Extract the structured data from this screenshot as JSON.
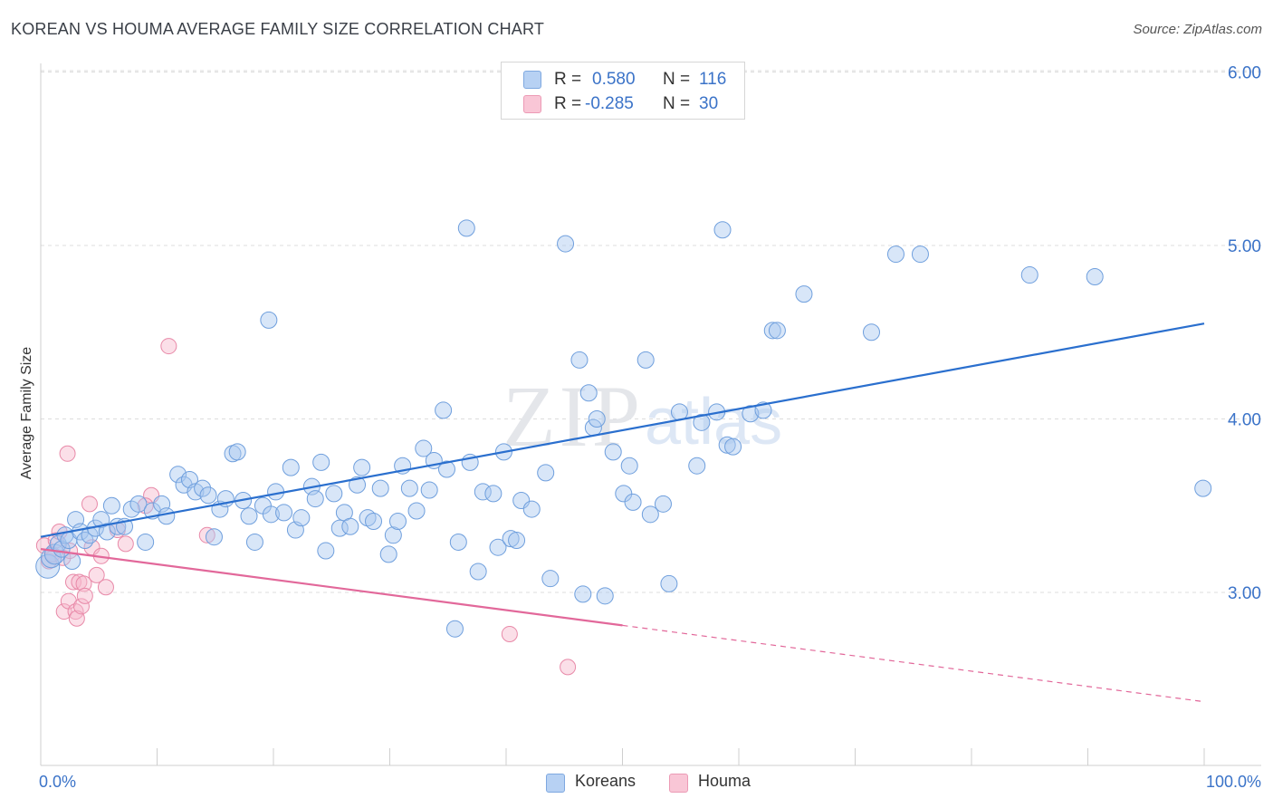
{
  "header": {
    "title": "KOREAN VS HOUMA AVERAGE FAMILY SIZE CORRELATION CHART",
    "source": "Source: ZipAtlas.com"
  },
  "watermark": {
    "zip": "ZIP",
    "atlas": "atlas"
  },
  "legend_top": {
    "korean": {
      "r_label": "R =",
      "r_value": "0.580",
      "n_label": "N =",
      "n_value": "116"
    },
    "houma": {
      "r_label": "R =",
      "r_value": "-0.285",
      "n_label": "N =",
      "n_value": "30"
    }
  },
  "colors": {
    "korean_fill": "#a9c8f0",
    "korean_stroke": "#6f9fdd",
    "korean_line": "#2a6fce",
    "houma_fill": "#f7b8cb",
    "houma_stroke": "#e889a8",
    "houma_line": "#e2689a",
    "axis_label": "#3b73c8",
    "grid": "#dcdcdc"
  },
  "chart_data": {
    "type": "scatter",
    "title": "KOREAN VS HOUMA AVERAGE FAMILY SIZE CORRELATION CHART",
    "xlabel": "",
    "ylabel": "Average Family Size",
    "xlim": [
      0,
      100
    ],
    "ylim": [
      2.0,
      6.1
    ],
    "x_tick_labels": [
      "0.0%",
      "100.0%"
    ],
    "y_ticks": [
      3.0,
      4.0,
      5.0,
      6.0
    ],
    "y_tick_labels": [
      "3.00",
      "4.00",
      "5.00",
      "6.00"
    ],
    "grid": true,
    "legend_position": "bottom",
    "series": [
      {
        "name": "Koreans",
        "r": 0.58,
        "n": 116,
        "trend": {
          "x": [
            0,
            100
          ],
          "y": [
            3.32,
            4.55
          ],
          "dashed_from": null
        },
        "points": [
          [
            0.6,
            3.15
          ],
          [
            0.9,
            3.2
          ],
          [
            1.2,
            3.22
          ],
          [
            1.5,
            3.28
          ],
          [
            1.8,
            3.25
          ],
          [
            2.1,
            3.33
          ],
          [
            2.4,
            3.3
          ],
          [
            2.7,
            3.18
          ],
          [
            3.0,
            3.42
          ],
          [
            3.4,
            3.35
          ],
          [
            3.8,
            3.3
          ],
          [
            4.2,
            3.33
          ],
          [
            4.7,
            3.37
          ],
          [
            5.2,
            3.42
          ],
          [
            5.7,
            3.35
          ],
          [
            6.1,
            3.5
          ],
          [
            6.6,
            3.38
          ],
          [
            7.2,
            3.38
          ],
          [
            7.8,
            3.48
          ],
          [
            8.4,
            3.51
          ],
          [
            9.0,
            3.29
          ],
          [
            9.6,
            3.47
          ],
          [
            10.4,
            3.51
          ],
          [
            10.8,
            3.44
          ],
          [
            11.8,
            3.68
          ],
          [
            12.3,
            3.62
          ],
          [
            12.8,
            3.65
          ],
          [
            13.3,
            3.58
          ],
          [
            13.9,
            3.6
          ],
          [
            14.4,
            3.56
          ],
          [
            14.9,
            3.32
          ],
          [
            15.4,
            3.48
          ],
          [
            15.9,
            3.54
          ],
          [
            16.5,
            3.8
          ],
          [
            16.9,
            3.81
          ],
          [
            17.4,
            3.53
          ],
          [
            17.9,
            3.44
          ],
          [
            18.4,
            3.29
          ],
          [
            19.1,
            3.5
          ],
          [
            19.6,
            4.57
          ],
          [
            19.8,
            3.45
          ],
          [
            20.2,
            3.58
          ],
          [
            20.9,
            3.46
          ],
          [
            21.5,
            3.72
          ],
          [
            21.9,
            3.36
          ],
          [
            22.4,
            3.43
          ],
          [
            23.3,
            3.61
          ],
          [
            23.6,
            3.54
          ],
          [
            24.1,
            3.75
          ],
          [
            24.5,
            3.24
          ],
          [
            25.2,
            3.57
          ],
          [
            25.7,
            3.37
          ],
          [
            26.1,
            3.46
          ],
          [
            26.6,
            3.38
          ],
          [
            27.2,
            3.62
          ],
          [
            27.6,
            3.72
          ],
          [
            28.1,
            3.43
          ],
          [
            28.6,
            3.41
          ],
          [
            29.2,
            3.6
          ],
          [
            29.9,
            3.22
          ],
          [
            30.3,
            3.33
          ],
          [
            30.7,
            3.41
          ],
          [
            31.1,
            3.73
          ],
          [
            31.7,
            3.6
          ],
          [
            32.3,
            3.47
          ],
          [
            32.9,
            3.83
          ],
          [
            33.4,
            3.59
          ],
          [
            33.8,
            3.76
          ],
          [
            34.6,
            4.05
          ],
          [
            34.9,
            3.71
          ],
          [
            35.6,
            2.79
          ],
          [
            35.9,
            3.29
          ],
          [
            36.6,
            5.1
          ],
          [
            36.9,
            3.75
          ],
          [
            37.6,
            3.12
          ],
          [
            38.0,
            3.58
          ],
          [
            38.9,
            3.57
          ],
          [
            39.3,
            3.26
          ],
          [
            39.8,
            3.81
          ],
          [
            40.4,
            3.31
          ],
          [
            40.9,
            3.3
          ],
          [
            41.3,
            3.53
          ],
          [
            42.2,
            3.48
          ],
          [
            43.4,
            3.69
          ],
          [
            43.8,
            3.08
          ],
          [
            45.1,
            5.01
          ],
          [
            46.3,
            4.34
          ],
          [
            46.6,
            2.99
          ],
          [
            47.1,
            4.15
          ],
          [
            47.5,
            3.95
          ],
          [
            47.8,
            4.0
          ],
          [
            48.5,
            2.98
          ],
          [
            49.2,
            3.81
          ],
          [
            50.1,
            3.57
          ],
          [
            50.6,
            3.73
          ],
          [
            50.9,
            3.52
          ],
          [
            52.0,
            4.34
          ],
          [
            52.4,
            3.45
          ],
          [
            53.5,
            3.51
          ],
          [
            54.0,
            3.05
          ],
          [
            54.9,
            4.04
          ],
          [
            56.4,
            3.73
          ],
          [
            56.8,
            3.98
          ],
          [
            58.1,
            4.04
          ],
          [
            58.6,
            5.09
          ],
          [
            59.0,
            3.85
          ],
          [
            59.5,
            3.84
          ],
          [
            61.0,
            4.03
          ],
          [
            62.1,
            4.05
          ],
          [
            62.9,
            4.51
          ],
          [
            63.3,
            4.51
          ],
          [
            65.6,
            4.72
          ],
          [
            71.4,
            4.5
          ],
          [
            73.5,
            4.95
          ],
          [
            75.6,
            4.95
          ],
          [
            85.0,
            4.83
          ],
          [
            90.6,
            4.82
          ],
          [
            99.9,
            3.6
          ]
        ]
      },
      {
        "name": "Houma",
        "r": -0.285,
        "n": 30,
        "trend": {
          "x": [
            0,
            100
          ],
          "y": [
            3.25,
            2.37
          ],
          "dashed_from": 50
        },
        "points": [
          [
            0.3,
            3.27
          ],
          [
            0.7,
            3.18
          ],
          [
            1.0,
            3.22
          ],
          [
            1.3,
            3.3
          ],
          [
            1.6,
            3.35
          ],
          [
            1.9,
            3.2
          ],
          [
            2.0,
            2.89
          ],
          [
            2.4,
            2.95
          ],
          [
            2.3,
            3.8
          ],
          [
            2.5,
            3.24
          ],
          [
            2.8,
            3.06
          ],
          [
            3.0,
            2.89
          ],
          [
            3.1,
            2.85
          ],
          [
            3.3,
            3.06
          ],
          [
            3.5,
            2.92
          ],
          [
            3.7,
            3.05
          ],
          [
            3.8,
            2.98
          ],
          [
            4.2,
            3.51
          ],
          [
            4.4,
            3.26
          ],
          [
            4.8,
            3.1
          ],
          [
            5.2,
            3.21
          ],
          [
            5.6,
            3.03
          ],
          [
            6.6,
            3.36
          ],
          [
            7.3,
            3.28
          ],
          [
            9.5,
            3.56
          ],
          [
            11.0,
            4.42
          ],
          [
            14.3,
            3.33
          ],
          [
            40.3,
            2.76
          ],
          [
            45.3,
            2.57
          ],
          [
            9.0,
            3.5
          ]
        ]
      }
    ]
  }
}
